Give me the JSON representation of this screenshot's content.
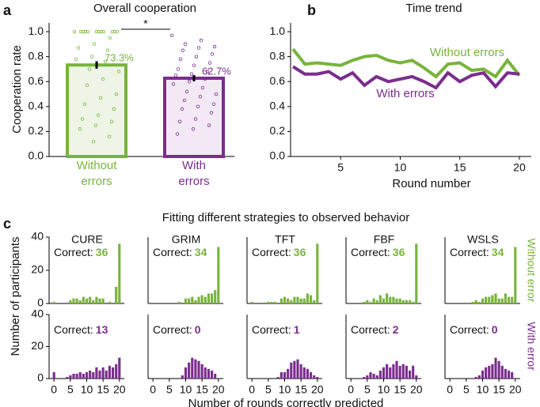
{
  "chart_data": [
    {
      "type": "bar",
      "panel_label": "a",
      "title": "Overall cooperation",
      "ylabel": "Cooperation rate",
      "categories": [
        "Without errors",
        "With errors"
      ],
      "values": [
        0.733,
        0.627
      ],
      "value_labels": [
        "73.3%",
        "62.7%"
      ],
      "errors": [
        0.03,
        0.025
      ],
      "colors": [
        "#78b43c",
        "#7b2d8e"
      ],
      "fills": [
        "#eef5e6",
        "#f2e9f4"
      ],
      "significance": "*",
      "points": [
        [
          1,
          1,
          1,
          1,
          1,
          1,
          1,
          1,
          1,
          1,
          1,
          1,
          0.95,
          0.9,
          0.87,
          0.85,
          0.8,
          0.78,
          0.76,
          0.7,
          0.68,
          0.62,
          0.57,
          0.5,
          0.47,
          0.42,
          0.38,
          0.33,
          0.3,
          0.28,
          0.25,
          0.22,
          0.16,
          0.12
        ],
        [
          0.97,
          0.93,
          0.9,
          0.88,
          0.87,
          0.85,
          0.82,
          0.8,
          0.78,
          0.75,
          0.73,
          0.7,
          0.68,
          0.66,
          0.65,
          0.62,
          0.6,
          0.58,
          0.55,
          0.52,
          0.5,
          0.48,
          0.45,
          0.42,
          0.4,
          0.38,
          0.35,
          0.3,
          0.28,
          0.25,
          0.22,
          0.18
        ]
      ],
      "ylim": [
        0,
        1.07
      ],
      "yticks": [
        {
          "value": 0,
          "label": "0.0"
        },
        0.2,
        0.4,
        0.6,
        0.8,
        {
          "value": 1,
          "label": "1.0"
        }
      ]
    },
    {
      "type": "line",
      "panel_label": "b",
      "title": "Time trend",
      "xlabel": "Round number",
      "x": [
        1,
        2,
        3,
        4,
        5,
        6,
        7,
        8,
        9,
        10,
        11,
        12,
        13,
        14,
        15,
        16,
        17,
        18,
        19,
        20
      ],
      "series": [
        {
          "name": "Without errors",
          "color": "#78b43c",
          "values": [
            0.86,
            0.74,
            0.75,
            0.74,
            0.73,
            0.77,
            0.8,
            0.81,
            0.77,
            0.75,
            0.77,
            0.71,
            0.64,
            0.74,
            0.75,
            0.69,
            0.7,
            0.64,
            0.77,
            0.65
          ]
        },
        {
          "name": "With errors",
          "color": "#7b2d8e",
          "values": [
            0.72,
            0.66,
            0.66,
            0.68,
            0.62,
            0.67,
            0.57,
            0.64,
            0.6,
            0.62,
            0.64,
            0.6,
            0.55,
            0.67,
            0.6,
            0.65,
            0.67,
            0.56,
            0.67,
            0.66
          ]
        }
      ],
      "xlim": [
        0.8,
        21
      ],
      "xticks": [
        0,
        5,
        10,
        15,
        20
      ],
      "ylim": [
        0,
        1.07
      ],
      "yticks": [
        {
          "value": 0,
          "label": "0.0"
        },
        0.2,
        0.4,
        0.6,
        0.8,
        {
          "value": 1,
          "label": "1.0"
        }
      ]
    },
    {
      "type": "histogram",
      "title": "CURE",
      "annotation": "Correct:",
      "correct": 36,
      "color": "#78b43c",
      "bins": [
        -0.5,
        0.5,
        1.5,
        2.5,
        3.5,
        4.5,
        5.5,
        6.5,
        7.5,
        8.5,
        9.5,
        10.5,
        11.5,
        12.5,
        13.5,
        14.5,
        15.5,
        16.5,
        17.5,
        18.5,
        19.5,
        20.5
      ],
      "counts": [
        1,
        0,
        0,
        0,
        0,
        2,
        3,
        3,
        2,
        4,
        3,
        4,
        2,
        4,
        3,
        3,
        0,
        1,
        0,
        10,
        36
      ],
      "xlim": [
        -1.5,
        21.5
      ],
      "ylim": [
        0,
        40
      ],
      "yticks": [
        0,
        20,
        40
      ]
    },
    {
      "type": "histogram",
      "title": "GRIM",
      "annotation": "Correct:",
      "correct": 34,
      "color": "#78b43c",
      "bins": [
        -0.5,
        0.5,
        1.5,
        2.5,
        3.5,
        4.5,
        5.5,
        6.5,
        7.5,
        8.5,
        9.5,
        10.5,
        11.5,
        12.5,
        13.5,
        14.5,
        15.5,
        16.5,
        17.5,
        18.5,
        19.5,
        20.5
      ],
      "counts": [
        0,
        0,
        0,
        0,
        0,
        0,
        0,
        0,
        1,
        0,
        3,
        3,
        4,
        2,
        4,
        5,
        4,
        6,
        6,
        8,
        34
      ],
      "xlim": [
        -1.5,
        21.5
      ],
      "ylim": [
        0,
        40
      ]
    },
    {
      "type": "histogram",
      "title": "TFT",
      "annotation": "Correct:",
      "correct": 36,
      "color": "#78b43c",
      "bins": [
        -0.5,
        0.5,
        1.5,
        2.5,
        3.5,
        4.5,
        5.5,
        6.5,
        7.5,
        8.5,
        9.5,
        10.5,
        11.5,
        12.5,
        13.5,
        14.5,
        15.5,
        16.5,
        17.5,
        18.5,
        19.5,
        20.5
      ],
      "counts": [
        1,
        0,
        0,
        0,
        0,
        1,
        1,
        1,
        0,
        3,
        4,
        3,
        2,
        4,
        4,
        3,
        3,
        6,
        5,
        2,
        36
      ],
      "xlim": [
        -1.5,
        21.5
      ],
      "ylim": [
        0,
        40
      ]
    },
    {
      "type": "histogram",
      "title": "FBF",
      "annotation": "Correct:",
      "correct": 36,
      "color": "#78b43c",
      "bins": [
        -0.5,
        0.5,
        1.5,
        2.5,
        3.5,
        4.5,
        5.5,
        6.5,
        7.5,
        8.5,
        9.5,
        10.5,
        11.5,
        12.5,
        13.5,
        14.5,
        15.5,
        16.5,
        17.5,
        18.5,
        19.5,
        20.5
      ],
      "counts": [
        0,
        0,
        0,
        0,
        1,
        2,
        1,
        3,
        2,
        5,
        3,
        6,
        4,
        4,
        3,
        3,
        2,
        2,
        2,
        1,
        36
      ],
      "xlim": [
        -1.5,
        21.5
      ],
      "ylim": [
        0,
        40
      ]
    },
    {
      "type": "histogram",
      "title": "WSLS",
      "annotation": "Correct:",
      "correct": 34,
      "color": "#78b43c",
      "bins": [
        -0.5,
        0.5,
        1.5,
        2.5,
        3.5,
        4.5,
        5.5,
        6.5,
        7.5,
        8.5,
        9.5,
        10.5,
        11.5,
        12.5,
        13.5,
        14.5,
        15.5,
        16.5,
        17.5,
        18.5,
        19.5,
        20.5
      ],
      "counts": [
        0,
        0,
        0,
        0,
        0,
        0,
        0,
        1,
        2,
        1,
        3,
        4,
        4,
        5,
        6,
        3,
        3,
        6,
        4,
        4,
        34
      ],
      "xlim": [
        -1.5,
        21.5
      ],
      "ylim": [
        0,
        40
      ]
    },
    {
      "type": "histogram",
      "annotation": "Correct:",
      "correct": 13,
      "color": "#7b2d8e",
      "bins": [
        -0.5,
        0.5,
        1.5,
        2.5,
        3.5,
        4.5,
        5.5,
        6.5,
        7.5,
        8.5,
        9.5,
        10.5,
        11.5,
        12.5,
        13.5,
        14.5,
        15.5,
        16.5,
        17.5,
        18.5,
        19.5,
        20.5
      ],
      "counts": [
        4,
        0,
        0,
        0,
        1,
        2,
        3,
        3,
        4,
        3,
        4,
        5,
        4,
        7,
        5,
        7,
        5,
        8,
        7,
        9,
        13
      ],
      "xlim": [
        -1.5,
        21.5
      ],
      "ylim": [
        0,
        40
      ],
      "yticks": [
        0,
        20,
        40
      ],
      "xticks": [
        0,
        5,
        10,
        15,
        20
      ]
    },
    {
      "type": "histogram",
      "annotation": "Correct:",
      "correct": 0,
      "color": "#7b2d8e",
      "bins": [
        -0.5,
        0.5,
        1.5,
        2.5,
        3.5,
        4.5,
        5.5,
        6.5,
        7.5,
        8.5,
        9.5,
        10.5,
        11.5,
        12.5,
        13.5,
        14.5,
        15.5,
        16.5,
        17.5,
        18.5,
        19.5,
        20.5
      ],
      "counts": [
        0,
        0,
        0,
        0,
        0,
        0,
        0,
        0,
        0,
        2,
        7,
        10,
        13,
        12,
        11,
        9,
        7,
        6,
        5,
        3,
        0
      ],
      "xlim": [
        -1.5,
        21.5
      ],
      "ylim": [
        0,
        40
      ],
      "xticks": [
        0,
        5,
        10,
        15,
        20
      ]
    },
    {
      "type": "histogram",
      "annotation": "Correct:",
      "correct": 1,
      "color": "#7b2d8e",
      "bins": [
        -0.5,
        0.5,
        1.5,
        2.5,
        3.5,
        4.5,
        5.5,
        6.5,
        7.5,
        8.5,
        9.5,
        10.5,
        11.5,
        12.5,
        13.5,
        14.5,
        15.5,
        16.5,
        17.5,
        18.5,
        19.5,
        20.5
      ],
      "counts": [
        0,
        0,
        0,
        0,
        0,
        0,
        0,
        0,
        1,
        4,
        4,
        6,
        10,
        11,
        12,
        9,
        7,
        6,
        4,
        2,
        1
      ],
      "xlim": [
        -1.5,
        21.5
      ],
      "ylim": [
        0,
        40
      ],
      "xticks": [
        0,
        5,
        10,
        15,
        20
      ]
    },
    {
      "type": "histogram",
      "annotation": "Correct:",
      "correct": 2,
      "color": "#7b2d8e",
      "bins": [
        -0.5,
        0.5,
        1.5,
        2.5,
        3.5,
        4.5,
        5.5,
        6.5,
        7.5,
        8.5,
        9.5,
        10.5,
        11.5,
        12.5,
        13.5,
        14.5,
        15.5,
        16.5,
        17.5,
        18.5,
        19.5,
        20.5
      ],
      "counts": [
        0,
        0,
        0,
        0,
        1,
        2,
        4,
        3,
        2,
        5,
        7,
        9,
        7,
        9,
        11,
        8,
        9,
        8,
        5,
        8,
        2
      ],
      "xlim": [
        -1.5,
        21.5
      ],
      "ylim": [
        0,
        40
      ],
      "xticks": [
        0,
        5,
        10,
        15,
        20
      ]
    },
    {
      "type": "histogram",
      "annotation": "Correct:",
      "correct": 0,
      "color": "#7b2d8e",
      "bins": [
        -0.5,
        0.5,
        1.5,
        2.5,
        3.5,
        4.5,
        5.5,
        6.5,
        7.5,
        8.5,
        9.5,
        10.5,
        11.5,
        12.5,
        13.5,
        14.5,
        15.5,
        16.5,
        17.5,
        18.5,
        19.5,
        20.5
      ],
      "counts": [
        0,
        0,
        0,
        0,
        0,
        0,
        0,
        0,
        1,
        2,
        5,
        7,
        8,
        9,
        13,
        11,
        8,
        6,
        5,
        4,
        0
      ],
      "xlim": [
        -1.5,
        21.5
      ],
      "ylim": [
        0,
        40
      ],
      "xticks": [
        0,
        5,
        10,
        15,
        20
      ]
    }
  ],
  "panel_c": {
    "panel_label": "c",
    "title": "Fitting different strategies to observed behavior",
    "ylabel": "Number of participants",
    "xlabel": "Number of rounds correctly predicted",
    "row_labels": [
      "Without error",
      "With error"
    ]
  }
}
